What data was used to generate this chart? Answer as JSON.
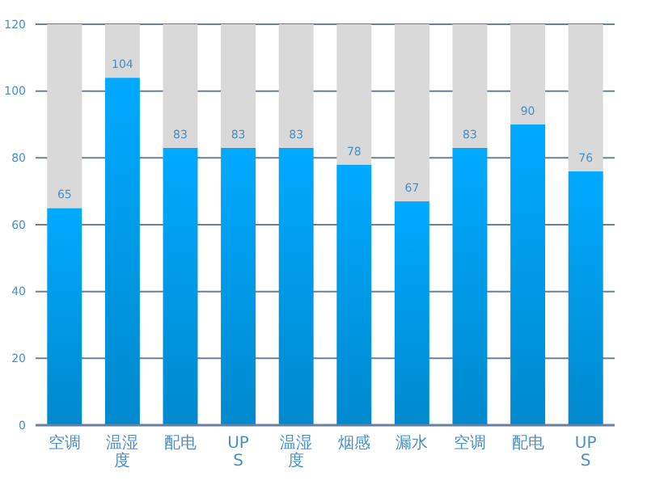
{
  "chart_data": {
    "type": "bar",
    "stacked": true,
    "categories": [
      "空调",
      "温湿度",
      "配电",
      "UPS",
      "温湿度",
      "烟感",
      "漏水",
      "空调",
      "配电",
      "UPS"
    ],
    "series": [
      {
        "color": "#00aaff",
        "values": [
          65,
          104,
          83,
          83,
          83,
          78,
          67,
          83,
          90,
          76
        ],
        "value_labels": [
          "65",
          "104",
          "83",
          "83",
          "83",
          "78",
          "67",
          "83",
          "90",
          "76"
        ]
      },
      {
        "color": "#d9d9d9",
        "values": [
          55,
          16,
          37,
          37,
          37,
          42,
          53,
          37,
          30,
          44
        ]
      }
    ],
    "ylim": [
      0,
      120
    ],
    "yticks": [
      0,
      20,
      40,
      60,
      80,
      100,
      120
    ],
    "grid": "y"
  }
}
